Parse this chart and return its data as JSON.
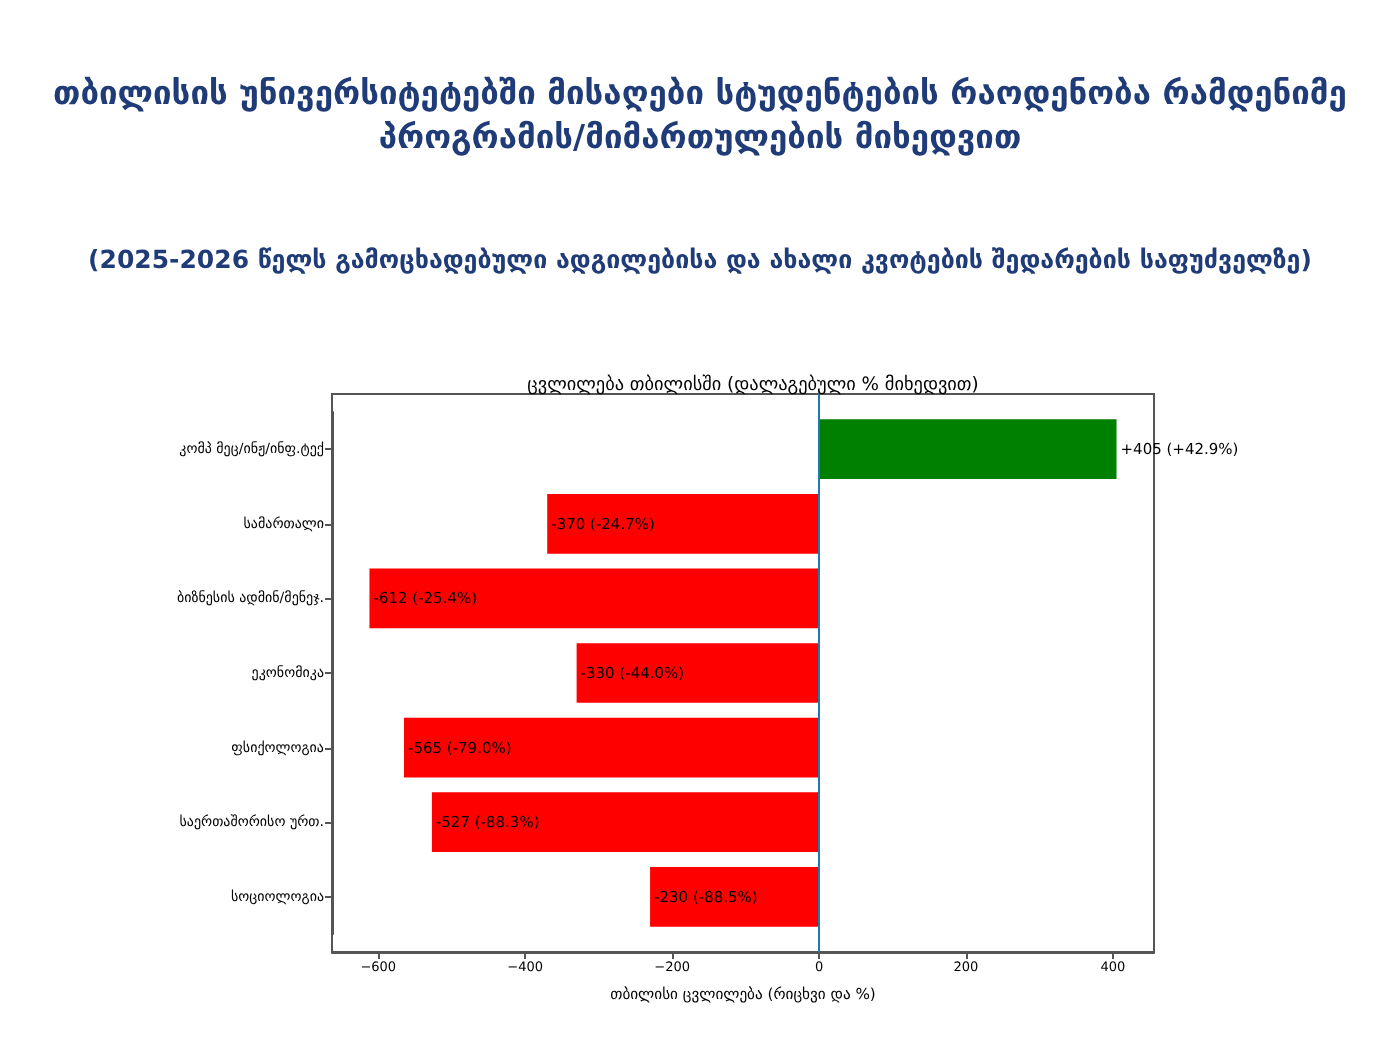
{
  "chart_data": {
    "type": "bar",
    "orientation": "horizontal",
    "title": "თბილისის უნივერსიტეტებში მისაღები სტუდენტების რაოდენობა რამდენიმე პროგრამის/მიმართულების მიხედვით",
    "subtitle": "(2025-2026 წელს გამოცხადებული ადგილებისა და ახალი კვოტების შედარების საფუძველზე)",
    "annotations": [
      "ცვლილება თბილისში (დალაგებული % მიხედვით)"
    ],
    "xlabel": "თბილისი ცვლილება (რიცხვი და %)",
    "categories": [
      "კომპ მეც/ინჟ/ინფ.ტექ",
      "სამართალი",
      "ბიზნესის ადმინ/მენეჯ.",
      "ეკონომიკა",
      "ფსიქოლოგია",
      "საერთაშორისო ურთ.",
      "სოციოლოგია"
    ],
    "values": [
      405,
      -370,
      -612,
      -330,
      -565,
      -527,
      -230
    ],
    "colors": [
      "#008000",
      "#ff0000",
      "#ff0000",
      "#ff0000",
      "#ff0000",
      "#ff0000",
      "#ff0000"
    ],
    "value_labels": [
      "+405 (+42.9%)",
      "-370 (-24.7%)",
      "-612 (-25.4%)",
      "-330 (-44.0%)",
      "-565 (-79.0%)",
      "-527 (-88.3%)",
      "-230 (-88.5%)"
    ],
    "xlim": [
      -663,
      456
    ],
    "xticks": [
      {
        "value": -600,
        "label": "−600"
      },
      {
        "value": -400,
        "label": "−400"
      },
      {
        "value": -200,
        "label": "−200"
      },
      0,
      200,
      400
    ],
    "ref_lines": [
      {
        "axis": "x",
        "value": 0,
        "color": "#1f77b4"
      }
    ]
  }
}
